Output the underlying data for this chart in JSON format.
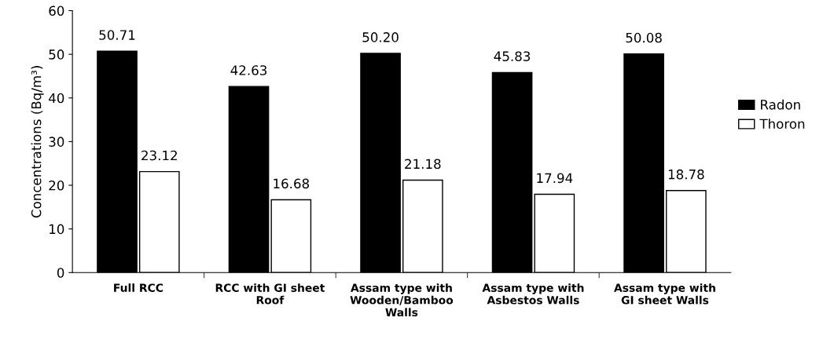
{
  "chart_data": {
    "type": "bar",
    "ylabel": "Concentrations (Bq/m³)",
    "categories": [
      "Full RCC",
      "RCC with GI sheet\nRoof",
      "Assam type with\nWooden/Bamboo\nWalls",
      "Assam type with\nAsbestos Walls",
      "Assam type with\nGI sheet Walls"
    ],
    "series": [
      {
        "name": "Radon",
        "color": "#000000",
        "values": [
          50.71,
          42.63,
          50.2,
          45.83,
          50.08
        ],
        "value_labels": [
          "50.71",
          "42.63",
          "50.20",
          "45.83",
          "50.08"
        ]
      },
      {
        "name": "Thoron",
        "color": "#ffffff",
        "values": [
          23.12,
          16.68,
          21.18,
          17.94,
          18.78
        ],
        "value_labels": [
          "23.12",
          "16.68",
          "21.18",
          "17.94",
          "18.78"
        ]
      }
    ],
    "ylim": [
      0,
      60
    ],
    "yticks": [
      0,
      10,
      20,
      30,
      40,
      50,
      60
    ],
    "grid": false,
    "legend": "right"
  }
}
